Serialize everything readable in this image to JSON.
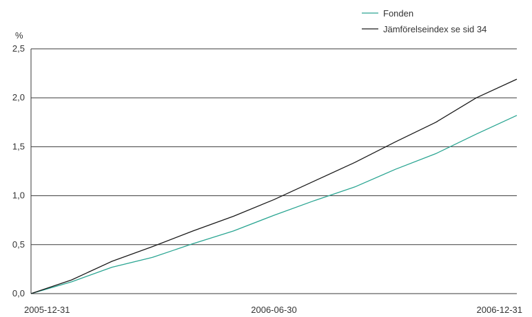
{
  "chart_data": {
    "type": "line",
    "title": "",
    "xlabel": "",
    "ylabel": "%",
    "ylim": [
      0,
      2.5
    ],
    "y_ticks": [
      "0,0",
      "0,5",
      "1,0",
      "1,5",
      "2,0",
      "2,5"
    ],
    "y_tick_values": [
      0,
      0.5,
      1.0,
      1.5,
      2.0,
      2.5
    ],
    "x_tick_labels": [
      "2005-12-31",
      "2006-06-30",
      "2006-12-31"
    ],
    "x": [
      "2005-12-31",
      "2006-01-31",
      "2006-02-28",
      "2006-03-31",
      "2006-04-30",
      "2006-05-31",
      "2006-06-30",
      "2006-07-31",
      "2006-08-31",
      "2006-09-30",
      "2006-10-31",
      "2006-11-30",
      "2006-12-31"
    ],
    "grid": true,
    "legend_position": "top-right",
    "series": [
      {
        "name": "Fonden",
        "color": "#2aa592",
        "values": [
          0.0,
          0.12,
          0.27,
          0.37,
          0.51,
          0.64,
          0.8,
          0.95,
          1.09,
          1.27,
          1.43,
          1.63,
          1.82
        ]
      },
      {
        "name": "Jämförelseindex se sid 34",
        "color": "#1a1a1a",
        "values": [
          0.0,
          0.14,
          0.33,
          0.48,
          0.64,
          0.79,
          0.96,
          1.15,
          1.34,
          1.55,
          1.75,
          2.0,
          2.19
        ]
      }
    ]
  }
}
